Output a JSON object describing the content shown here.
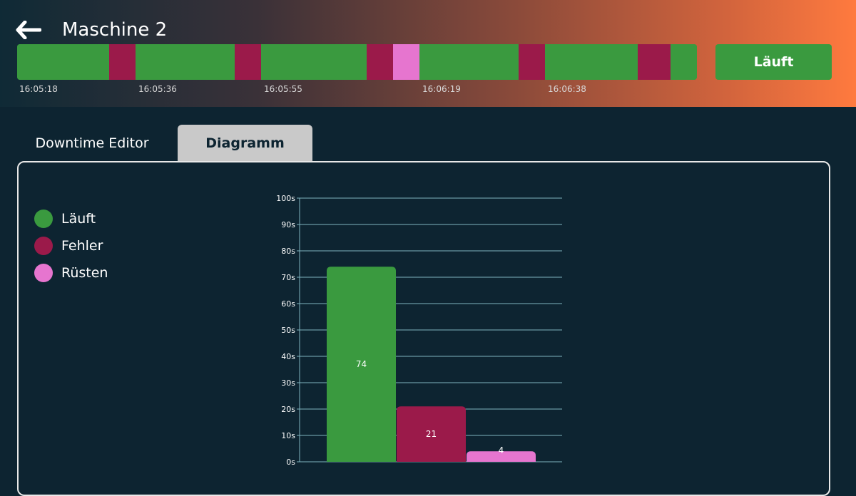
{
  "header": {
    "title": "Maschine 2",
    "status_label": "Läuft",
    "timeline_segments": [
      {
        "state": "Läuft",
        "color": "#3a9a3f",
        "weight": 129
      },
      {
        "state": "Fehler",
        "color": "#9b1a4a",
        "weight": 37
      },
      {
        "state": "Läuft",
        "color": "#3a9a3f",
        "weight": 139
      },
      {
        "state": "Fehler",
        "color": "#9b1a4a",
        "weight": 37
      },
      {
        "state": "Läuft",
        "color": "#3a9a3f",
        "weight": 148
      },
      {
        "state": "Fehler",
        "color": "#9b1a4a",
        "weight": 37
      },
      {
        "state": "Rüsten",
        "color": "#e675cf",
        "weight": 37
      },
      {
        "state": "Läuft",
        "color": "#3a9a3f",
        "weight": 139
      },
      {
        "state": "Fehler",
        "color": "#9b1a4a",
        "weight": 37
      },
      {
        "state": "Läuft",
        "color": "#3a9a3f",
        "weight": 130
      },
      {
        "state": "Fehler",
        "color": "#9b1a4a",
        "weight": 46
      },
      {
        "state": "Läuft",
        "color": "#3a9a3f",
        "weight": 37
      }
    ],
    "timeline_ticks": [
      "16:05:18",
      "16:05:36",
      "16:05:55",
      "16:06:19",
      "16:06:38"
    ]
  },
  "tabs": {
    "editor_label": "Downtime Editor",
    "diagram_label": "Diagramm"
  },
  "legend": [
    {
      "label": "Läuft",
      "color": "#3a9a3f"
    },
    {
      "label": "Fehler",
      "color": "#9b1a4a"
    },
    {
      "label": "Rüsten",
      "color": "#e675cf"
    }
  ],
  "colors": {
    "running": "#3a9a3f",
    "error": "#9b1a4a",
    "setup": "#e675cf",
    "background": "#0d2431",
    "grid": "#7fb3bf"
  },
  "chart_data": {
    "type": "bar",
    "categories": [
      "Läuft",
      "Fehler",
      "Rüsten"
    ],
    "values": [
      74,
      21,
      4
    ],
    "colors": [
      "#3a9a3f",
      "#9b1a4a",
      "#e675cf"
    ],
    "ylim": [
      0,
      100
    ],
    "yticks": [
      0,
      10,
      20,
      30,
      40,
      50,
      60,
      70,
      80,
      90,
      100
    ],
    "ytick_labels": [
      "0s",
      "10s",
      "20s",
      "30s",
      "40s",
      "50s",
      "60s",
      "70s",
      "80s",
      "90s",
      "100s"
    ],
    "title": "",
    "xlabel": "",
    "ylabel": ""
  }
}
